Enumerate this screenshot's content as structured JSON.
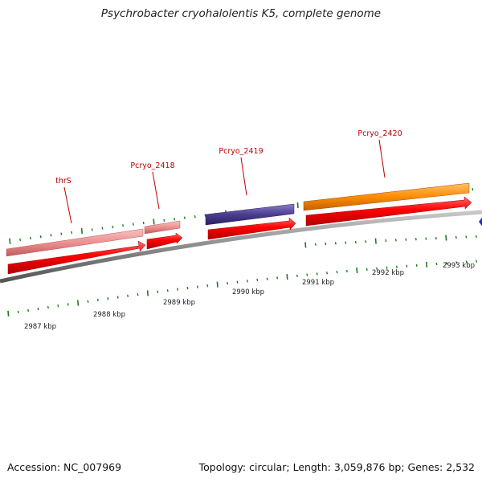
{
  "title": "Psychrobacter cryohalolentis K5, complete genome",
  "footer": {
    "accession": "Accession: NC_007969",
    "summary": "Topology: circular; Length: 3,059,876 bp; Genes: 2,532"
  },
  "colors": {
    "backbone": "#8c8c8c",
    "tick": "#1f7a1f",
    "cds": "#ff0000",
    "trna": "#ee9090",
    "gene_blue": "#4b3d8f",
    "gene_orange": "#ff8c00",
    "label": "#c00000"
  },
  "kbp_labels": [
    "2987 kbp",
    "2988 kbp",
    "2989 kbp",
    "2990 kbp",
    "2991 kbp",
    "2992 kbp",
    "2993 kbp"
  ],
  "genes": [
    {
      "name": "thrS",
      "color": "#ee9090"
    },
    {
      "name": "Pcryo_2418",
      "color": "#ee9090"
    },
    {
      "name": "Pcryo_2419",
      "color": "#4b3d8f"
    },
    {
      "name": "Pcryo_2420",
      "color": "#ff8c00"
    }
  ]
}
